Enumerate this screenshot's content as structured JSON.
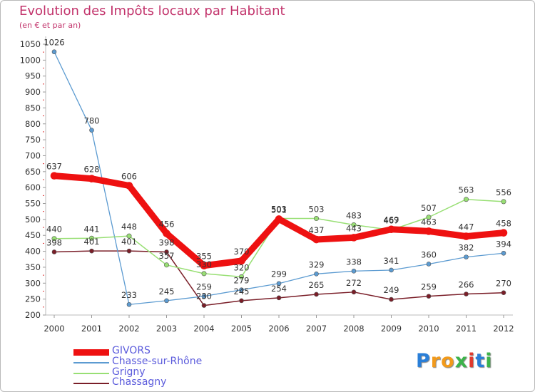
{
  "header": {
    "title": "Evolution des Impôts locaux par Habitant",
    "subtitle": "(en € et par an)"
  },
  "chart_data": {
    "type": "line",
    "title": "Evolution des Impôts locaux par Habitant",
    "subtitle": "(en € et par an)",
    "xlabel": "",
    "ylabel": "",
    "x": [
      "2000",
      "2001",
      "2002",
      "2003",
      "2004",
      "2005",
      "2006",
      "2007",
      "2008",
      "2009",
      "2010",
      "2011",
      "2012"
    ],
    "ylim": [
      200,
      1050
    ],
    "yticks": [
      200,
      250,
      300,
      350,
      400,
      450,
      500,
      550,
      600,
      650,
      700,
      750,
      800,
      850,
      900,
      950,
      1000,
      1050
    ],
    "grid": false,
    "legend_position": "bottom-left",
    "series": [
      {
        "name": "Chassagny",
        "color": "#7a1e28",
        "values": [
          398,
          401,
          401,
          398,
          230,
          245,
          254,
          265,
          272,
          249,
          259,
          266,
          270
        ]
      },
      {
        "name": "Chasse-sur-Rhône",
        "color": "#5c9bd1",
        "values": [
          1026,
          780,
          233,
          245,
          259,
          279,
          299,
          329,
          338,
          341,
          360,
          382,
          394
        ]
      },
      {
        "name": "Grigny",
        "color": "#98df74",
        "values": [
          440,
          441,
          448,
          357,
          330,
          320,
          503,
          503,
          483,
          467,
          507,
          563,
          556
        ]
      },
      {
        "name": "GIVORS",
        "color": "#ee1111",
        "values": [
          637,
          628,
          606,
          456,
          355,
          370,
          501,
          437,
          443,
          469,
          463,
          447,
          458
        ]
      }
    ]
  },
  "legend": {
    "items": [
      {
        "name": "GIVORS",
        "color": "#ee1111",
        "thickness": 9
      },
      {
        "name": "Chasse-sur-Rhône",
        "color": "#5c9bd1",
        "thickness": 2
      },
      {
        "name": "Grigny",
        "color": "#98df74",
        "thickness": 2
      },
      {
        "name": "Chassagny",
        "color": "#7a1e28",
        "thickness": 2
      }
    ]
  },
  "logo": {
    "letters": [
      {
        "ch": "P",
        "color": "#2a7fd8"
      },
      {
        "ch": "r",
        "color": "#f29a1b"
      },
      {
        "ch": "o",
        "color": "#f29a1b"
      },
      {
        "ch": "x",
        "color": "#3cb34a"
      },
      {
        "ch": "i",
        "color": "#e03a2e"
      },
      {
        "ch": "t",
        "color": "#2a7fd8"
      },
      {
        "ch": "i",
        "color": "#3cb34a"
      }
    ]
  }
}
